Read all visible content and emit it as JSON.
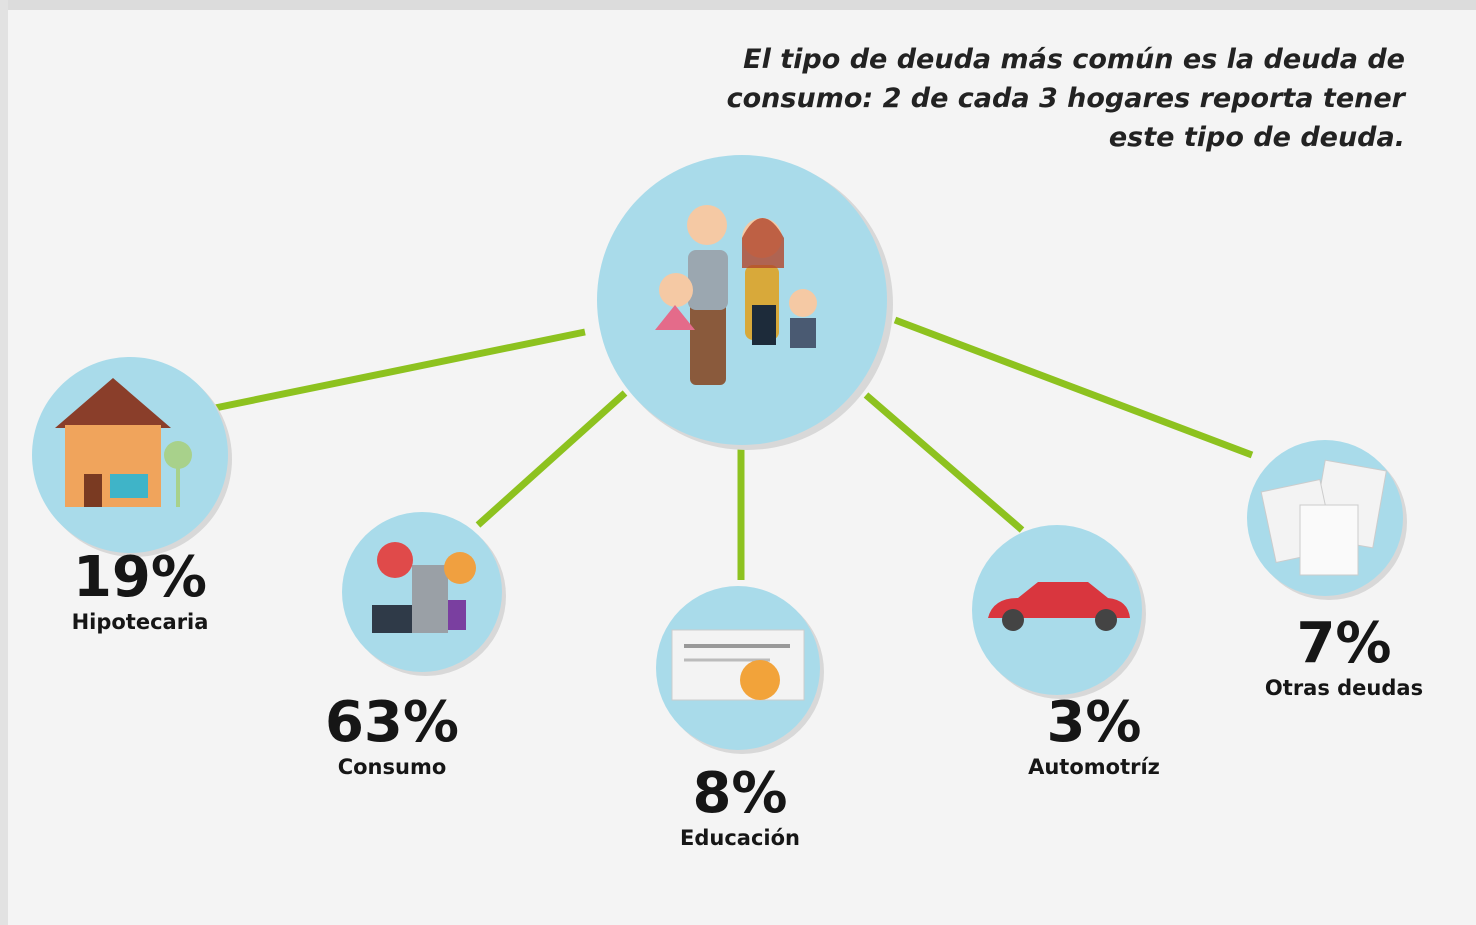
{
  "caption_lines": [
    "El tipo de deuda más común es la deuda de",
    "consumo: 2 de cada 3 hogares reporta tener",
    "este tipo de deuda."
  ],
  "items": [
    {
      "percent": "19%",
      "label": "Hipotecaria"
    },
    {
      "percent": "63%",
      "label": "Consumo"
    },
    {
      "percent": "8%",
      "label": "Educación"
    },
    {
      "percent": "3%",
      "label": "Automotríz"
    },
    {
      "percent": "7%",
      "label": "Otras deudas"
    }
  ]
}
